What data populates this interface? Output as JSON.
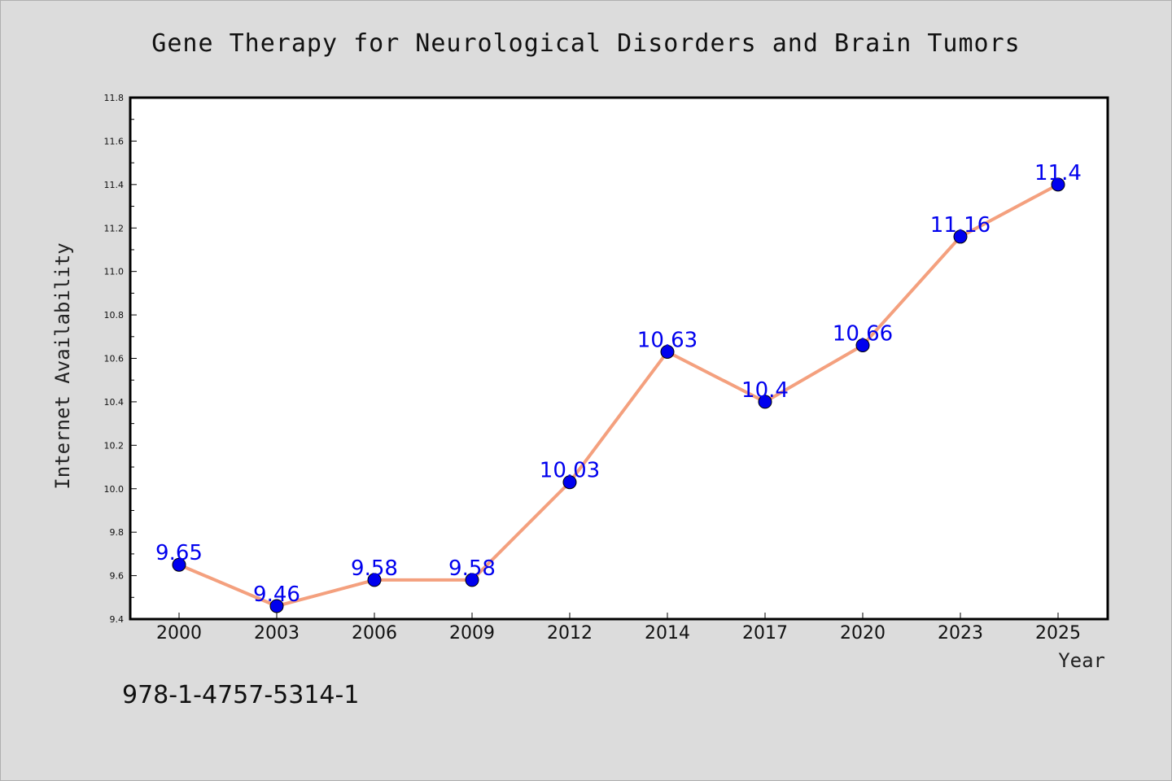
{
  "chart_data": {
    "type": "line",
    "title": "Gene Therapy for Neurological Disorders and Brain Tumors",
    "xlabel": "Year",
    "ylabel": "Internet Availability",
    "categories": [
      "2000",
      "2003",
      "2006",
      "2009",
      "2012",
      "2014",
      "2017",
      "2020",
      "2023",
      "2025"
    ],
    "series": [
      {
        "values": [
          9.65,
          9.46,
          9.58,
          9.58,
          10.03,
          10.63,
          10.4,
          10.66,
          11.16,
          11.4
        ],
        "data_labels": [
          "9.65",
          "9.46",
          "9.58",
          "9.58",
          "10.03",
          "10.63",
          "10.4",
          "10.66",
          "11.16",
          "11.4"
        ]
      }
    ],
    "ylim": [
      9.4,
      11.8
    ],
    "yticks": [
      "9.4",
      "9.6",
      "9.8",
      "10.0",
      "10.2",
      "10.4",
      "10.6",
      "10.8",
      "11.0",
      "11.2",
      "11.4",
      "11.6",
      "11.8"
    ],
    "grid": false,
    "legend": "none",
    "colors": {
      "line": "#f4a07e",
      "marker": "#0000ee",
      "label": "#0000ee",
      "background": "#dcdcdc",
      "plot_area": "#ffffff"
    }
  },
  "footer": {
    "isbn": "978-1-4757-5314-1"
  }
}
